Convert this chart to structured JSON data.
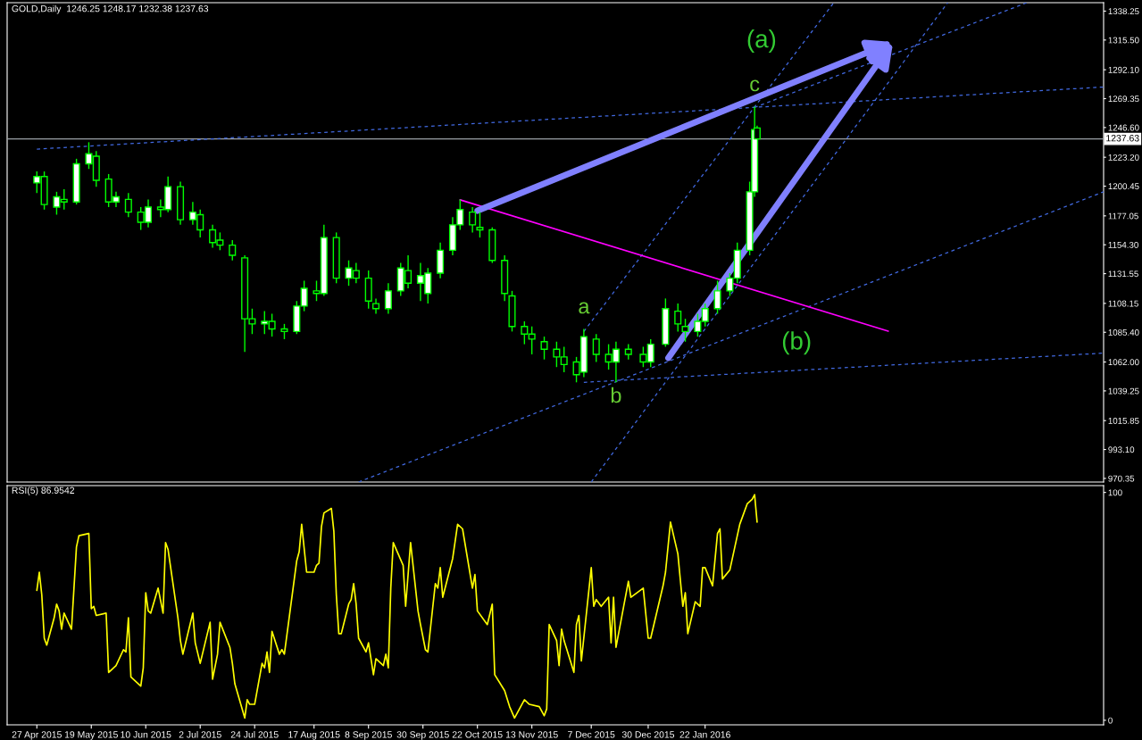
{
  "chart_data": [
    {
      "type": "candlestick",
      "title": "GOLD,Daily  1246.25 1248.17 1232.38 1237.63",
      "color": "#00ff00",
      "x": [
        "2015-04-27",
        "2015-04-30",
        "2015-05-05",
        "2015-05-08",
        "2015-05-13",
        "2015-05-18",
        "2015-05-21",
        "2015-05-26",
        "2015-05-29",
        "2015-06-03",
        "2015-06-08",
        "2015-06-11",
        "2015-06-16",
        "2015-06-19",
        "2015-06-24",
        "2015-06-29",
        "2015-07-02",
        "2015-07-07",
        "2015-07-10",
        "2015-07-15",
        "2015-07-20",
        "2015-07-23",
        "2015-07-28",
        "2015-07-31",
        "2015-08-05",
        "2015-08-10",
        "2015-08-13",
        "2015-08-18",
        "2015-08-21",
        "2015-08-26",
        "2015-08-31",
        "2015-09-03",
        "2015-09-08",
        "2015-09-11",
        "2015-09-16",
        "2015-09-21",
        "2015-09-24",
        "2015-09-29",
        "2015-10-02",
        "2015-10-07",
        "2015-10-12",
        "2015-10-15",
        "2015-10-20",
        "2015-10-23",
        "2015-10-28",
        "2015-11-02",
        "2015-11-05",
        "2015-11-10",
        "2015-11-13",
        "2015-11-18",
        "2015-11-23",
        "2015-11-26",
        "2015-12-01",
        "2015-12-04",
        "2015-12-09",
        "2015-12-14",
        "2015-12-17",
        "2015-12-22",
        "2015-12-28",
        "2015-12-31",
        "2016-01-06",
        "2016-01-11",
        "2016-01-14",
        "2016-01-19",
        "2016-01-22",
        "2016-01-27",
        "2016-02-01",
        "2016-02-04",
        "2016-02-09",
        "2016-02-11",
        "2016-02-12"
      ],
      "ohlc": [
        [
          1203,
          1212,
          1195,
          1208
        ],
        [
          1208,
          1212,
          1182,
          1186
        ],
        [
          1184,
          1196,
          1178,
          1192
        ],
        [
          1190,
          1198,
          1182,
          1188
        ],
        [
          1188,
          1222,
          1186,
          1218
        ],
        [
          1218,
          1235,
          1214,
          1226
        ],
        [
          1224,
          1228,
          1200,
          1205
        ],
        [
          1206,
          1210,
          1184,
          1188
        ],
        [
          1188,
          1196,
          1184,
          1192
        ],
        [
          1190,
          1195,
          1176,
          1180
        ],
        [
          1180,
          1184,
          1166,
          1172
        ],
        [
          1172,
          1190,
          1168,
          1184
        ],
        [
          1184,
          1190,
          1176,
          1182
        ],
        [
          1182,
          1208,
          1180,
          1200
        ],
        [
          1200,
          1204,
          1170,
          1174
        ],
        [
          1174,
          1188,
          1170,
          1180
        ],
        [
          1178,
          1182,
          1160,
          1166
        ],
        [
          1166,
          1170,
          1152,
          1156
        ],
        [
          1158,
          1164,
          1150,
          1154
        ],
        [
          1154,
          1158,
          1142,
          1146
        ],
        [
          1144,
          1146,
          1070,
          1096
        ],
        [
          1096,
          1104,
          1084,
          1092
        ],
        [
          1092,
          1102,
          1084,
          1094
        ],
        [
          1094,
          1100,
          1082,
          1088
        ],
        [
          1088,
          1092,
          1080,
          1086
        ],
        [
          1086,
          1110,
          1084,
          1106
        ],
        [
          1106,
          1126,
          1102,
          1120
        ],
        [
          1118,
          1126,
          1110,
          1116
        ],
        [
          1116,
          1170,
          1114,
          1160
        ],
        [
          1160,
          1164,
          1124,
          1128
        ],
        [
          1128,
          1142,
          1122,
          1136
        ],
        [
          1134,
          1140,
          1124,
          1128
        ],
        [
          1128,
          1134,
          1104,
          1110
        ],
        [
          1108,
          1112,
          1100,
          1104
        ],
        [
          1104,
          1124,
          1100,
          1118
        ],
        [
          1118,
          1140,
          1114,
          1136
        ],
        [
          1134,
          1146,
          1120,
          1124
        ],
        [
          1124,
          1140,
          1110,
          1130
        ],
        [
          1116,
          1136,
          1108,
          1132
        ],
        [
          1132,
          1156,
          1128,
          1150
        ],
        [
          1150,
          1176,
          1146,
          1170
        ],
        [
          1170,
          1190,
          1166,
          1182
        ],
        [
          1180,
          1184,
          1164,
          1170
        ],
        [
          1168,
          1180,
          1160,
          1166
        ],
        [
          1166,
          1168,
          1140,
          1142
        ],
        [
          1142,
          1146,
          1110,
          1116
        ],
        [
          1114,
          1118,
          1086,
          1090
        ],
        [
          1090,
          1094,
          1076,
          1084
        ],
        [
          1084,
          1090,
          1068,
          1080
        ],
        [
          1078,
          1082,
          1064,
          1072
        ],
        [
          1072,
          1078,
          1058,
          1066
        ],
        [
          1066,
          1074,
          1054,
          1060
        ],
        [
          1062,
          1066,
          1046,
          1052
        ],
        [
          1054,
          1088,
          1050,
          1082
        ],
        [
          1080,
          1084,
          1062,
          1068
        ],
        [
          1068,
          1076,
          1056,
          1062
        ],
        [
          1062,
          1078,
          1046,
          1072
        ],
        [
          1072,
          1076,
          1064,
          1068
        ],
        [
          1068,
          1074,
          1058,
          1062
        ],
        [
          1062,
          1080,
          1058,
          1076
        ],
        [
          1076,
          1112,
          1074,
          1104
        ],
        [
          1102,
          1108,
          1086,
          1092
        ],
        [
          1090,
          1096,
          1078,
          1086
        ],
        [
          1086,
          1100,
          1082,
          1094
        ],
        [
          1094,
          1108,
          1090,
          1104
        ],
        [
          1104,
          1126,
          1100,
          1118
        ],
        [
          1118,
          1132,
          1114,
          1128
        ],
        [
          1128,
          1156,
          1124,
          1150
        ],
        [
          1150,
          1204,
          1146,
          1196
        ],
        [
          1196,
          1263,
          1192,
          1245
        ],
        [
          1246.25,
          1248.17,
          1232.38,
          1237.63
        ]
      ],
      "series": [
        {
          "type": "line",
          "color": "#4169e1",
          "line_style": "dashed",
          "x": [
            "2015-04-27",
            "2016-07-01"
          ],
          "values": [
            1229.6,
            1278.5
          ]
        },
        {
          "type": "line",
          "color": "#4169e1",
          "line_style": "dashed",
          "x": [
            "2015-12-07",
            "2016-04-29"
          ],
          "values": [
            967.5,
            1344.9
          ]
        },
        {
          "type": "line",
          "color": "#4169e1",
          "line_style": "dashed",
          "x": [
            "2015-12-04",
            "2016-03-14"
          ],
          "values": [
            1086,
            1344.9
          ]
        },
        {
          "type": "line",
          "color": "#4169e1",
          "line_style": "dashed",
          "x": [
            "2015-09-04",
            "2016-07-01"
          ],
          "values": [
            967.5,
            1196
          ]
        },
        {
          "type": "line",
          "color": "#4169e1",
          "line_style": "dashed",
          "x": [
            "2015-12-04",
            "2016-07-01"
          ],
          "values": [
            1046,
            1069
          ]
        },
        {
          "type": "line",
          "color": "#4169e1",
          "line_style": "dashed",
          "x": [
            "2016-02-11",
            "2016-05-31"
          ],
          "values": [
            1262.4,
            1344.9
          ]
        },
        {
          "type": "line",
          "color": "#ff00ff",
          "line_style": "solid",
          "x": [
            "2015-10-15",
            "2016-04-05"
          ],
          "values": [
            1189.7,
            1086.3
          ]
        }
      ],
      "ref_lines": [
        {
          "axis": "y",
          "value": 1237.63,
          "label": "1237.63",
          "color": "#9aa0a6"
        }
      ],
      "annotations": [
        "(a)",
        {
          "text": "c",
          "x": "2016-02-11",
          "y": 1263
        },
        {
          "text": "a",
          "x": "2015-12-04",
          "y": 1088
        },
        {
          "text": "b",
          "x": "2015-12-17",
          "y": 1046
        },
        "(b)"
      ],
      "xlim": [
        "2015-04-15",
        "2016-07-01"
      ],
      "ylim": [
        967.5,
        1344.9
      ],
      "yticks": [
        970.35,
        {
          "value": 993.1,
          "label": "993.10"
        },
        1015.85,
        1039.25,
        {
          "value": 1062,
          "label": "1062.00"
        },
        {
          "value": 1085.4,
          "label": "1085.40"
        },
        1108.15,
        1131.55,
        {
          "value": 1154.3,
          "label": "1154.30"
        },
        1177.05,
        1200.45,
        {
          "value": 1223.2,
          "label": "1223.20"
        },
        {
          "value": 1246.6,
          "label": "1246.60"
        },
        1269.35,
        {
          "value": 1292.1,
          "label": "1292.10"
        },
        {
          "value": 1315.5,
          "label": "1315.50"
        },
        1338.25
      ],
      "tick_labels": "y"
    },
    {
      "type": "line",
      "title": "RSI(5) 86.9542",
      "series": [
        {
          "color": "#ffff00",
          "x": [
            "2015-04-27",
            "2015-04-28",
            "2015-04-29",
            "2015-04-30",
            "2015-05-01",
            "2015-05-04",
            "2015-05-05",
            "2015-05-06",
            "2015-05-07",
            "2015-05-08",
            "2015-05-11",
            "2015-05-13",
            "2015-05-14",
            "2015-05-18",
            "2015-05-19",
            "2015-05-20",
            "2015-05-21",
            "2015-05-25",
            "2015-05-26",
            "2015-05-29",
            "2015-06-01",
            "2015-06-02",
            "2015-06-03",
            "2015-06-04",
            "2015-06-08",
            "2015-06-09",
            "2015-06-10",
            "2015-06-11",
            "2015-06-12",
            "2015-06-15",
            "2015-06-17",
            "2015-06-18",
            "2015-06-19",
            "2015-06-23",
            "2015-06-24",
            "2015-06-25",
            "2015-06-29",
            "2015-06-30",
            "2015-07-02",
            "2015-07-06",
            "2015-07-07",
            "2015-07-09",
            "2015-07-10",
            "2015-07-14",
            "2015-07-15",
            "2015-07-16",
            "2015-07-20",
            "2015-07-21",
            "2015-07-22",
            "2015-07-24",
            "2015-07-27",
            "2015-07-28",
            "2015-07-29",
            "2015-07-30",
            "2015-07-31",
            "2015-08-03",
            "2015-08-04",
            "2015-08-05",
            "2015-08-10",
            "2015-08-11",
            "2015-08-12",
            "2015-08-14",
            "2015-08-17",
            "2015-08-18",
            "2015-08-19",
            "2015-08-20",
            "2015-08-21",
            "2015-08-24",
            "2015-08-25",
            "2015-08-26",
            "2015-08-27",
            "2015-08-28",
            "2015-08-31",
            "2015-09-01",
            "2015-09-02",
            "2015-09-03",
            "2015-09-04",
            "2015-09-07",
            "2015-09-08",
            "2015-09-10",
            "2015-09-11",
            "2015-09-14",
            "2015-09-15",
            "2015-09-16",
            "2015-09-17",
            "2015-09-18",
            "2015-09-22",
            "2015-09-23",
            "2015-09-25",
            "2015-09-28",
            "2015-09-29",
            "2015-10-01",
            "2015-10-02",
            "2015-10-05",
            "2015-10-06",
            "2015-10-07",
            "2015-10-08",
            "2015-10-12",
            "2015-10-14",
            "2015-10-16",
            "2015-10-20",
            "2015-10-21",
            "2015-10-22",
            "2015-10-26",
            "2015-10-28",
            "2015-10-29",
            "2015-11-02",
            "2015-11-04",
            "2015-11-06",
            "2015-11-10",
            "2015-11-12",
            "2015-11-16",
            "2015-11-18",
            "2015-11-19",
            "2015-11-20",
            "2015-11-23",
            "2015-11-24",
            "2015-11-25",
            "2015-11-26",
            "2015-11-30",
            "2015-12-01",
            "2015-12-02",
            "2015-12-03",
            "2015-12-07",
            "2015-12-08",
            "2015-12-09",
            "2015-12-11",
            "2015-12-14",
            "2015-12-15",
            "2015-12-16",
            "2015-12-17",
            "2015-12-22",
            "2015-12-23",
            "2015-12-28",
            "2015-12-29",
            "2015-12-30",
            "2015-12-31",
            "2016-01-05",
            "2016-01-06",
            "2016-01-08",
            "2016-01-11",
            "2016-01-13",
            "2016-01-14",
            "2016-01-15",
            "2016-01-18",
            "2016-01-20",
            "2016-01-21",
            "2016-01-22",
            "2016-01-25",
            "2016-01-27",
            "2016-01-28",
            "2016-01-29",
            "2016-02-01",
            "2016-02-03",
            "2016-02-05",
            "2016-02-08",
            "2016-02-10",
            "2016-02-11",
            "2016-02-12"
          ],
          "values": [
            57,
            65,
            55,
            36,
            33,
            45,
            51,
            48,
            40,
            47,
            40,
            76,
            81,
            82,
            49,
            50,
            46,
            47,
            21,
            24,
            31,
            30,
            45,
            19,
            15,
            23,
            56,
            48,
            47,
            58,
            47,
            78,
            75,
            45,
            35,
            29,
            47,
            34,
            25,
            43,
            18,
            29,
            43,
            32,
            25,
            16,
            1,
            9,
            7,
            7,
            25,
            23,
            30,
            21,
            39,
            29,
            31,
            29,
            70,
            74,
            86,
            65,
            65,
            68,
            69,
            85,
            91,
            93,
            83,
            55,
            38,
            38,
            51,
            53,
            60,
            51,
            36,
            30,
            34,
            20,
            27,
            24,
            29,
            23,
            58,
            78,
            68,
            50,
            78,
            48,
            42,
            31,
            30,
            60,
            58,
            67,
            54,
            71,
            86,
            84,
            58,
            64,
            48,
            42,
            51,
            20,
            13,
            6,
            1,
            9,
            7,
            6,
            2,
            5,
            42,
            35,
            24,
            40,
            35,
            21,
            42,
            46,
            26,
            67,
            50,
            53,
            50,
            54,
            34,
            54,
            32,
            61,
            54,
            58,
            47,
            36,
            36,
            59,
            65,
            87,
            73,
            50,
            56,
            38,
            52,
            50,
            67,
            67,
            59,
            82,
            84,
            62,
            66,
            76,
            86,
            95,
            97,
            99,
            87
          ]
        }
      ],
      "xlim": [
        "2015-04-15",
        "2016-07-01"
      ],
      "ylim": [
        -2,
        103
      ],
      "yticks": [
        0,
        100
      ],
      "xticks": [
        {
          "value": "2015-04-27",
          "label": "27 Apr 2015"
        },
        {
          "value": "2015-05-19",
          "label": "19 May 2015"
        },
        {
          "value": "2015-06-10",
          "label": "10 Jun 2015"
        },
        {
          "value": "2015-07-02",
          "label": "2 Jul 2015"
        },
        {
          "value": "2015-07-24",
          "label": "24 Jul 2015"
        },
        {
          "value": "2015-08-17",
          "label": "17 Aug 2015"
        },
        {
          "value": "2015-09-08",
          "label": "8 Sep 2015"
        },
        {
          "value": "2015-09-30",
          "label": "30 Sep 2015"
        },
        {
          "value": "2015-10-22",
          "label": "22 Oct 2015"
        },
        {
          "value": "2015-11-13",
          "label": "13 Nov 2015"
        },
        {
          "value": "2015-12-07",
          "label": "7 Dec 2015"
        },
        {
          "value": "2015-12-30",
          "label": "30 Dec 2015"
        },
        {
          "value": "2016-01-22",
          "label": "22 Jan 2016"
        }
      ]
    }
  ]
}
